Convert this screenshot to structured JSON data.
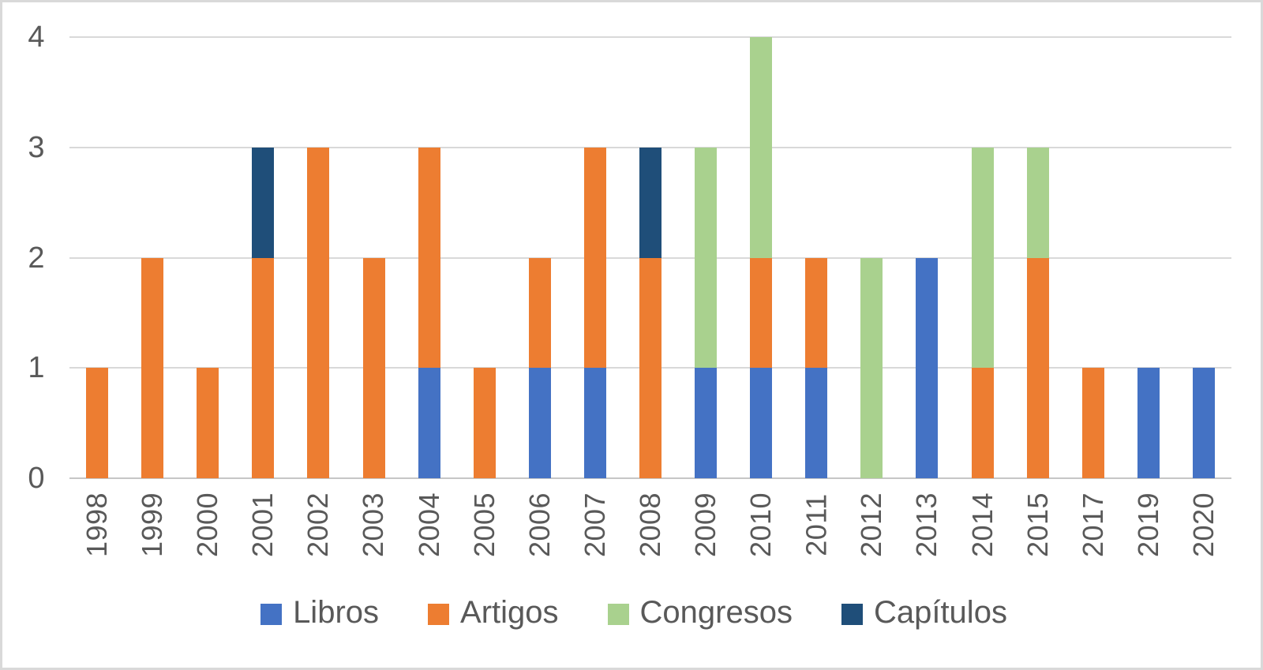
{
  "chart_data": {
    "type": "bar",
    "stacked": true,
    "title": "",
    "xlabel": "",
    "ylabel": "",
    "categories": [
      "1998",
      "1999",
      "2000",
      "2001",
      "2002",
      "2003",
      "2004",
      "2005",
      "2006",
      "2007",
      "2008",
      "2009",
      "2010",
      "2011",
      "2012",
      "2013",
      "2014",
      "2015",
      "2017",
      "2019",
      "2020"
    ],
    "series": [
      {
        "name": "Libros",
        "color": "#4472C4",
        "values": [
          0,
          0,
          0,
          0,
          0,
          0,
          1,
          0,
          1,
          1,
          0,
          1,
          1,
          1,
          0,
          2,
          0,
          0,
          0,
          1,
          1
        ]
      },
      {
        "name": "Artigos",
        "color": "#ED7D31",
        "values": [
          1,
          2,
          1,
          2,
          3,
          2,
          2,
          1,
          1,
          2,
          2,
          0,
          1,
          1,
          0,
          0,
          1,
          2,
          1,
          0,
          0
        ]
      },
      {
        "name": "Congresos",
        "color": "#A9D18E",
        "values": [
          0,
          0,
          0,
          0,
          0,
          0,
          0,
          0,
          0,
          0,
          0,
          2,
          2,
          0,
          2,
          0,
          2,
          1,
          0,
          0,
          0
        ]
      },
      {
        "name": "Capítulos",
        "color": "#1F4E79",
        "values": [
          0,
          0,
          0,
          1,
          0,
          0,
          0,
          0,
          0,
          0,
          1,
          0,
          0,
          0,
          0,
          0,
          0,
          0,
          0,
          0,
          0
        ]
      }
    ],
    "ylim": [
      0,
      4
    ],
    "yticks": [
      "0",
      "1",
      "2",
      "3",
      "4"
    ],
    "grid": true,
    "legend_position": "bottom",
    "colors": {
      "gridline": "#d9d9d9",
      "axis_line": "#c6c6c6",
      "tick_text": "#595959",
      "background": "#ffffff"
    }
  }
}
